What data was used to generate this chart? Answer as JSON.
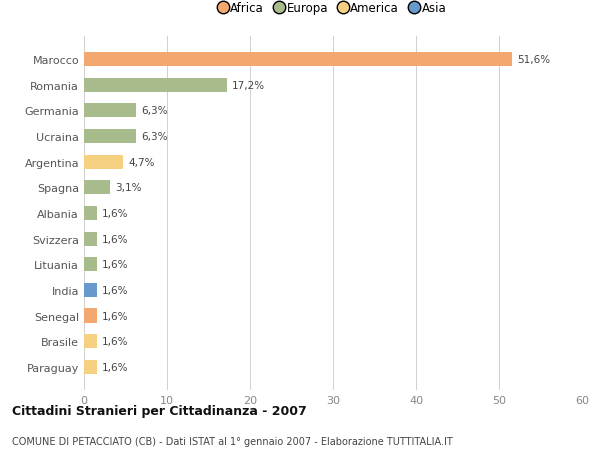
{
  "countries": [
    "Marocco",
    "Romania",
    "Germania",
    "Ucraina",
    "Argentina",
    "Spagna",
    "Albania",
    "Svizzera",
    "Lituania",
    "India",
    "Senegal",
    "Brasile",
    "Paraguay"
  ],
  "values": [
    51.6,
    17.2,
    6.3,
    6.3,
    4.7,
    3.1,
    1.6,
    1.6,
    1.6,
    1.6,
    1.6,
    1.6,
    1.6
  ],
  "labels": [
    "51,6%",
    "17,2%",
    "6,3%",
    "6,3%",
    "4,7%",
    "3,1%",
    "1,6%",
    "1,6%",
    "1,6%",
    "1,6%",
    "1,6%",
    "1,6%",
    "1,6%"
  ],
  "continents": [
    "Africa",
    "Europa",
    "Europa",
    "Europa",
    "America",
    "Europa",
    "Europa",
    "Europa",
    "Europa",
    "Asia",
    "Africa",
    "America",
    "America"
  ],
  "colors": {
    "Africa": "#F2A86F",
    "Europa": "#A8BB8C",
    "America": "#F5D080",
    "Asia": "#6699CC"
  },
  "legend_order": [
    "Africa",
    "Europa",
    "America",
    "Asia"
  ],
  "xlim": [
    0,
    60
  ],
  "xticks": [
    0,
    10,
    20,
    30,
    40,
    50,
    60
  ],
  "title": "Cittadini Stranieri per Cittadinanza - 2007",
  "subtitle": "COMUNE DI PETACCIATO (CB) - Dati ISTAT al 1° gennaio 2007 - Elaborazione TUTTITALIA.IT",
  "background_color": "#ffffff",
  "grid_color": "#d0d0d0",
  "bar_height": 0.55
}
